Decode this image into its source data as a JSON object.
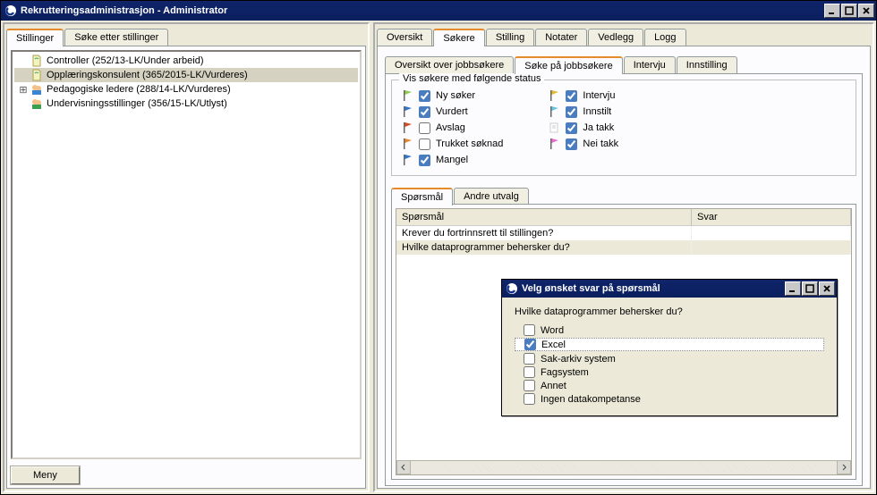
{
  "window": {
    "title": "Rekrutteringsadministrasjon - Administrator"
  },
  "leftTabs": {
    "tab1": "Stillinger",
    "tab2": "Søke etter stillinger"
  },
  "tree": {
    "item1": "Controller (252/13-LK/Under arbeid)",
    "item2": "Opplæringskonsulent (365/2015-LK/Vurderes)",
    "item3": "Pedagogiske ledere (288/14-LK/Vurderes)",
    "item4": "Undervisningsstillinger (356/15-LK/Utlyst)"
  },
  "menuBtn": "Meny",
  "rightTabs": {
    "t1": "Oversikt",
    "t2": "Søkere",
    "t3": "Stilling",
    "t4": "Notater",
    "t5": "Vedlegg",
    "t6": "Logg"
  },
  "subTabs": {
    "s1": "Oversikt over jobbsøkere",
    "s2": "Søke på jobbsøkere",
    "s3": "Intervju",
    "s4": "Innstilling"
  },
  "statusGroup": {
    "legend": "Vis søkere med følgende status"
  },
  "status": {
    "ny": {
      "label": "Ny søker",
      "checked": true,
      "flag": "#8ecb4e",
      "path": "flag"
    },
    "vurdert": {
      "label": "Vurdert",
      "checked": true,
      "flag": "#2f74d0",
      "path": "flag"
    },
    "avslag": {
      "label": "Avslag",
      "checked": false,
      "flag": "#d84a1f",
      "path": "flag"
    },
    "trukket": {
      "label": "Trukket søknad",
      "checked": false,
      "flag": "#e6892b",
      "path": "flag"
    },
    "mangel": {
      "label": "Mangel",
      "checked": true,
      "flag": "#2f74d0",
      "path": "flag"
    },
    "intervju": {
      "label": "Intervju",
      "checked": true,
      "flag": "#e4b92f",
      "path": "flag"
    },
    "innstilt": {
      "label": "Innstilt",
      "checked": true,
      "flag": "#66c6e0",
      "path": "flag"
    },
    "jatakk": {
      "label": "Ja takk",
      "checked": true,
      "flag": "#cccccc",
      "path": "doc"
    },
    "neitakk": {
      "label": "Nei takk",
      "checked": true,
      "flag": "#e86fcb",
      "path": "flag"
    }
  },
  "innerTabs": {
    "i1": "Spørsmål",
    "i2": "Andre utvalg"
  },
  "table": {
    "col_q": "Spørsmål",
    "col_a": "Svar",
    "row1_q": "Krever du fortrinnsrett til stillingen?",
    "row1_a": "",
    "row2_q": "Hvilke dataprogrammer behersker du?",
    "row2_a": ""
  },
  "dialog": {
    "title": "Velg ønsket svar på spørsmål",
    "question": "Hvilke dataprogrammer behersker du?",
    "o1": {
      "label": "Word",
      "checked": false
    },
    "o2": {
      "label": "Excel",
      "checked": true
    },
    "o3": {
      "label": "Sak-arkiv system",
      "checked": false
    },
    "o4": {
      "label": "Fagsystem",
      "checked": false
    },
    "o5": {
      "label": "Annet",
      "checked": false
    },
    "o6": {
      "label": "Ingen datakompetanse",
      "checked": false
    }
  }
}
